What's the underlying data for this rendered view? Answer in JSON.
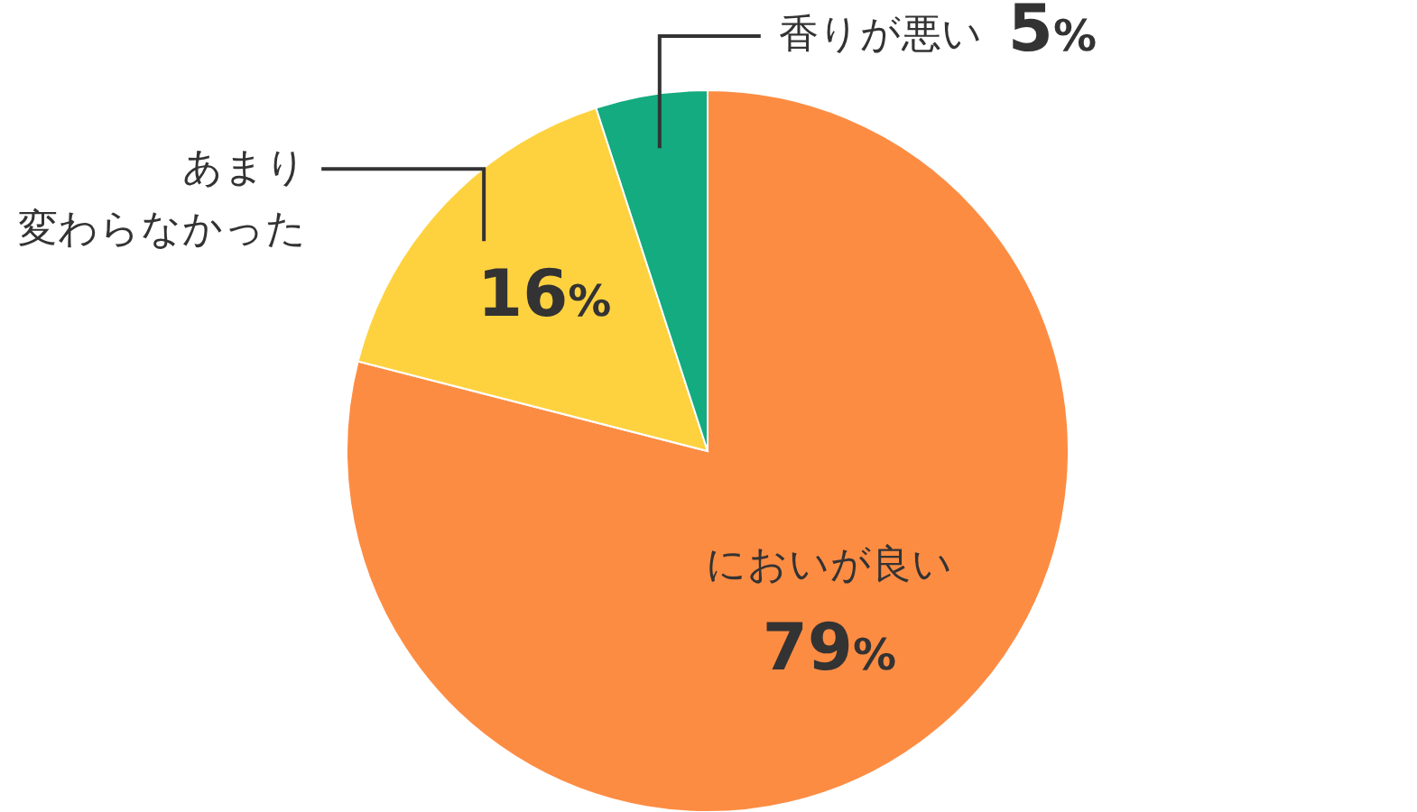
{
  "chart_data": {
    "type": "pie",
    "categories": [
      "においが良い",
      "あまり変わらなかった",
      "香りが悪い"
    ],
    "values": [
      79,
      16,
      5
    ],
    "colors": [
      "#fd8c43",
      "#fed23f",
      "#13ab7f"
    ],
    "value_labels": [
      "79%",
      "16%",
      "5%"
    ],
    "legend": false
  }
}
